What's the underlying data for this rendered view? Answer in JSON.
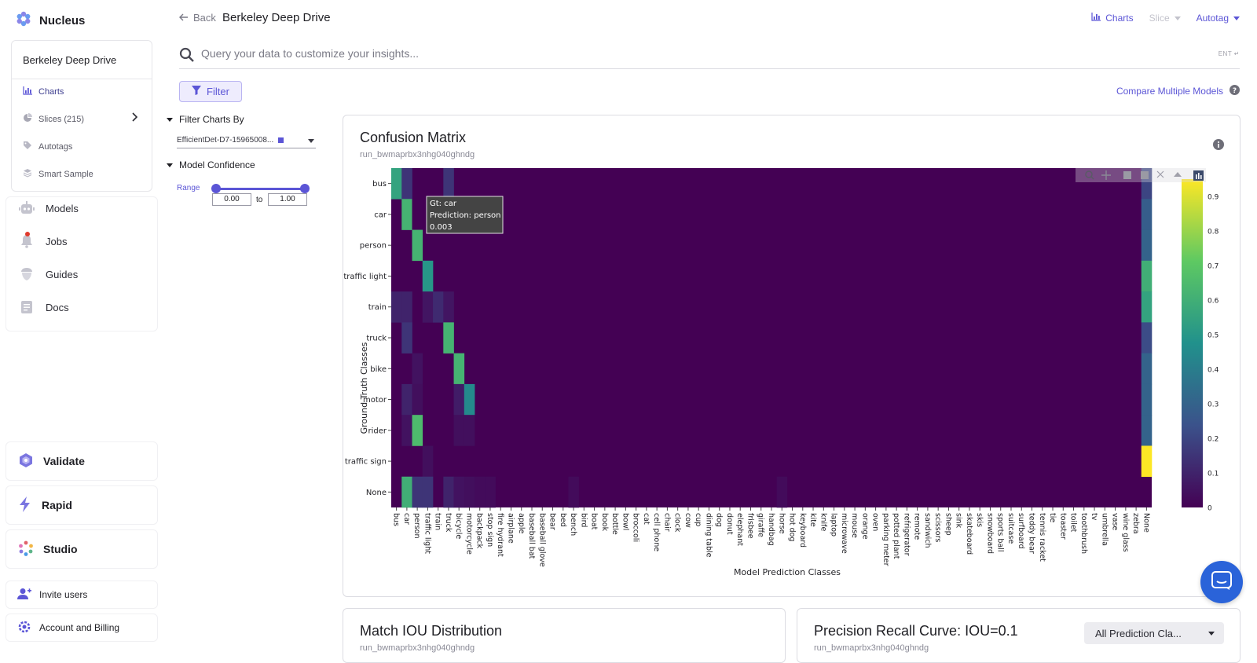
{
  "app": {
    "name": "Nucleus"
  },
  "sidebar": {
    "dataset_name": "Berkeley Deep Drive",
    "sub_items": [
      {
        "label": "Charts",
        "icon": "bar-chart-icon"
      },
      {
        "label": "Slices (215)",
        "icon": "slices-icon"
      },
      {
        "label": "Autotags",
        "icon": "tag-icon"
      },
      {
        "label": "Smart Sample",
        "icon": "layers-icon"
      }
    ],
    "nav": [
      {
        "label": "Models",
        "icon": "robot-icon"
      },
      {
        "label": "Jobs",
        "icon": "bell-icon"
      },
      {
        "label": "Guides",
        "icon": "acorn-icon"
      },
      {
        "label": "Docs",
        "icon": "document-icon"
      }
    ],
    "apps": [
      {
        "label": "Validate",
        "icon": "validate-icon"
      },
      {
        "label": "Rapid",
        "icon": "bolt-icon"
      },
      {
        "label": "Studio",
        "icon": "studio-icon"
      }
    ],
    "invite_label": "Invite users",
    "account_label": "Account and Billing"
  },
  "header": {
    "back_label": "Back",
    "breadcrumb": "Berkeley Deep Drive",
    "charts_label": "Charts",
    "slice_label": "Slice",
    "autotag_label": "Autotag"
  },
  "search": {
    "placeholder": "Query your data to customize your insights...",
    "hint": "ENT ↵"
  },
  "toolbar": {
    "filter_label": "Filter",
    "compare_label": "Compare Multiple Models"
  },
  "filters": {
    "charts_by_title": "Filter Charts By",
    "model_value": "EfficientDet-D7-15965008...",
    "confidence_title": "Model Confidence",
    "range_label": "Range",
    "range_min": "0.00",
    "range_to": "to",
    "range_max": "1.00",
    "range_min_value": 0.0,
    "range_max_value": 1.0
  },
  "confusion_card": {
    "title": "Confusion Matrix",
    "run_id": "run_bwmaprbx3nhg040ghndg",
    "tooltip": {
      "gt": "Gt: car",
      "prediction": "Prediction: person",
      "value": "0.003"
    }
  },
  "bottom_cards": [
    {
      "title": "Match IOU Distribution",
      "run_id": "run_bwmaprbx3nhg040ghndg"
    },
    {
      "title": "Precision Recall Curve: IOU=0.1",
      "run_id": "run_bwmaprbx3nhg040ghndg",
      "select_value": "All Prediction Cla..."
    }
  ],
  "colors": {
    "accent": "#5b55d6",
    "heat_low": "#440154",
    "heat_high": "#fde725"
  },
  "chart_data": {
    "type": "heatmap",
    "title": "Confusion Matrix",
    "xlabel": "Model Prediction Classes",
    "ylabel": "Ground Truth Classes",
    "colorbar_ticks": [
      "0.9",
      "0.8",
      "0.7",
      "0.6",
      "0.5",
      "0.4",
      "0.3",
      "0.2",
      "0.1",
      "0"
    ],
    "zlim": [
      0,
      0.95
    ],
    "y_categories": [
      "bus",
      "car",
      "person",
      "traffic light",
      "train",
      "truck",
      "bike",
      "motor",
      "rider",
      "traffic sign",
      "None"
    ],
    "x_categories": [
      "bus",
      "car",
      "person",
      "traffic light",
      "train",
      "truck",
      "bicycle",
      "motorcycle",
      "backpack",
      "stop sign",
      "fire hydrant",
      "airplane",
      "apple",
      "baseball bat",
      "baseball glove",
      "bear",
      "bed",
      "bench",
      "bird",
      "boat",
      "book",
      "bottle",
      "bowl",
      "broccoli",
      "cat",
      "cell phone",
      "chair",
      "clock",
      "cow",
      "cup",
      "dining table",
      "dog",
      "donut",
      "elephant",
      "frisbee",
      "giraffe",
      "handbag",
      "horse",
      "hot dog",
      "keyboard",
      "kite",
      "knife",
      "laptop",
      "microwave",
      "mouse",
      "orange",
      "oven",
      "parking meter",
      "potted plant",
      "refrigerator",
      "remote",
      "sandwich",
      "scissors",
      "sheep",
      "sink",
      "skateboard",
      "skis",
      "snowboard",
      "sports ball",
      "suitcase",
      "surfboard",
      "teddy bear",
      "tennis racket",
      "tie",
      "toaster",
      "toilet",
      "toothbrush",
      "tv",
      "umbrella",
      "vase",
      "wine glass",
      "zebra",
      "None"
    ],
    "cells": [
      [
        0,
        0,
        0.55
      ],
      [
        0,
        1,
        0.15
      ],
      [
        0,
        5,
        0.15
      ],
      [
        0,
        72,
        0.2
      ],
      [
        1,
        1,
        0.62
      ],
      [
        1,
        2,
        0.003
      ],
      [
        1,
        72,
        0.28
      ],
      [
        2,
        2,
        0.62
      ],
      [
        2,
        72,
        0.3
      ],
      [
        3,
        3,
        0.5
      ],
      [
        3,
        72,
        0.6
      ],
      [
        4,
        0,
        0.1
      ],
      [
        4,
        1,
        0.1
      ],
      [
        4,
        3,
        0.06
      ],
      [
        4,
        4,
        0.12
      ],
      [
        4,
        5,
        0.06
      ],
      [
        4,
        72,
        0.55
      ],
      [
        5,
        1,
        0.15
      ],
      [
        5,
        5,
        0.62
      ],
      [
        5,
        72,
        0.22
      ],
      [
        6,
        2,
        0.05
      ],
      [
        6,
        6,
        0.62
      ],
      [
        6,
        72,
        0.3
      ],
      [
        7,
        1,
        0.1
      ],
      [
        7,
        2,
        0.04
      ],
      [
        7,
        6,
        0.08
      ],
      [
        7,
        7,
        0.45
      ],
      [
        7,
        72,
        0.3
      ],
      [
        8,
        1,
        0.05
      ],
      [
        8,
        2,
        0.65
      ],
      [
        8,
        6,
        0.04
      ],
      [
        8,
        7,
        0.04
      ],
      [
        8,
        72,
        0.3
      ],
      [
        9,
        3,
        0.04
      ],
      [
        9,
        72,
        0.95
      ],
      [
        10,
        1,
        0.6
      ],
      [
        10,
        2,
        0.15
      ],
      [
        10,
        3,
        0.15
      ],
      [
        10,
        5,
        0.1
      ],
      [
        10,
        6,
        0.05
      ],
      [
        10,
        7,
        0.04
      ],
      [
        10,
        8,
        0.03
      ],
      [
        10,
        9,
        0.03
      ],
      [
        10,
        17,
        0.03
      ],
      [
        10,
        37,
        0.03
      ]
    ]
  }
}
